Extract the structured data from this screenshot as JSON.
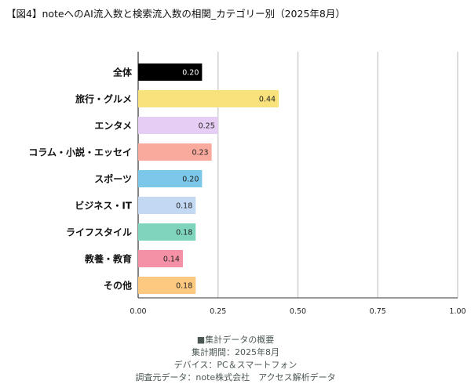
{
  "title": "【図4】noteへのAI流入数と検索流入数の相関_カテゴリー別（2025年8月）",
  "chart_data": {
    "type": "bar",
    "orientation": "horizontal",
    "categories": [
      "全体",
      "旅行・グルメ",
      "エンタメ",
      "コラム・小説・エッセイ",
      "スポーツ",
      "ビジネス・IT",
      "ライフスタイル",
      "教養・教育",
      "その他"
    ],
    "values": [
      0.2,
      0.44,
      0.25,
      0.23,
      0.2,
      0.18,
      0.18,
      0.14,
      0.18
    ],
    "colors": [
      "#000000",
      "#f9e27c",
      "#e6cdf3",
      "#f9aa9c",
      "#7cc8ea",
      "#c3d8f3",
      "#7fd4be",
      "#f591a7",
      "#fdc980"
    ],
    "xlim": [
      0,
      1
    ],
    "xticks": [
      "0.00",
      "0.25",
      "0.50",
      "0.75",
      "1.00"
    ],
    "grid": true,
    "data_labels": true
  },
  "notes": [
    "■集計データの概要",
    "集計期間：2025年8月",
    "デバイス：PC＆スマートフォン",
    "調査元データ：note株式会社　アクセス解析データ"
  ]
}
